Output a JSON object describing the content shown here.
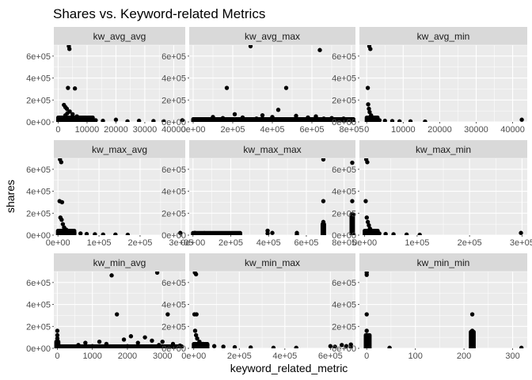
{
  "chart_data": {
    "type": "scatter",
    "title": "Shares vs. Keyword-related Metrics",
    "xlabel": "keyword_related_metric",
    "ylabel": "shares",
    "facet_layout": "3x3 grid, free x scales",
    "grid": true,
    "colors": {
      "panel_bg": "#ebebeb",
      "strip_bg": "#d9d9d9",
      "grid": "#ffffff",
      "point": "#000000",
      "text": "#4d4d4d",
      "strip_text": "#1a1a1a"
    },
    "y_ticks": [
      "0e+00",
      "2e+05",
      "4e+05",
      "6e+05"
    ],
    "y_tick_values": [
      0,
      200000,
      400000,
      600000
    ],
    "ylim": [
      0,
      700000
    ],
    "facets": [
      {
        "label": "kw_avg_avg",
        "xlim": [
          -1500,
          44000
        ],
        "x_ticks": [
          "0",
          "10000",
          "20000",
          "30000",
          "40000"
        ],
        "x_tick_values": [
          0,
          10000,
          20000,
          30000,
          40000
        ],
        "points": [
          [
            3700,
            690000
          ],
          [
            3900,
            665000
          ],
          [
            3400,
            310000
          ],
          [
            5800,
            305000
          ],
          [
            2000,
            155000
          ],
          [
            2500,
            135000
          ],
          [
            3000,
            120000
          ],
          [
            4000,
            95000
          ],
          [
            5000,
            70000
          ],
          [
            6500,
            50000
          ],
          [
            8000,
            35000
          ],
          [
            9500,
            20000
          ],
          [
            11000,
            25000
          ],
          [
            13000,
            15000
          ],
          [
            15500,
            10000
          ],
          [
            20000,
            20000
          ],
          [
            24000,
            5000
          ],
          [
            28000,
            10000
          ],
          [
            33000,
            8000
          ],
          [
            36500,
            5000
          ],
          [
            43000,
            15000
          ],
          [
            2500,
            60000
          ],
          [
            3200,
            80000
          ],
          [
            4500,
            40000
          ],
          [
            6000,
            30000
          ],
          [
            7500,
            15000
          ]
        ],
        "band": [
          [
            0,
            12000,
            0,
            40000
          ]
        ]
      },
      {
        "label": "kw_avg_max",
        "xlim": [
          -20000,
          820000
        ],
        "x_ticks": [
          "0e+00",
          "2e+05",
          "4e+05",
          "6e+05",
          "8e+05"
        ],
        "x_tick_values": [
          0,
          200000,
          400000,
          600000,
          800000
        ],
        "points": [
          [
            290000,
            690000
          ],
          [
            640000,
            655000
          ],
          [
            170000,
            310000
          ],
          [
            470000,
            310000
          ],
          [
            430000,
            110000
          ],
          [
            210000,
            70000
          ],
          [
            350000,
            60000
          ],
          [
            520000,
            55000
          ],
          [
            620000,
            50000
          ],
          [
            100000,
            45000
          ],
          [
            250000,
            40000
          ],
          [
            580000,
            40000
          ],
          [
            700000,
            35000
          ],
          [
            760000,
            30000
          ],
          [
            800000,
            25000
          ],
          [
            150000,
            35000
          ],
          [
            320000,
            30000
          ],
          [
            400000,
            45000
          ],
          [
            660000,
            30000
          ]
        ],
        "band": [
          [
            0,
            810000,
            0,
            25000
          ]
        ]
      },
      {
        "label": "kw_avg_min",
        "xlim": [
          -2000,
          44000
        ],
        "x_ticks": [
          "0",
          "10000",
          "20000",
          "30000",
          "40000"
        ],
        "x_tick_values": [
          0,
          10000,
          20000,
          30000,
          40000
        ],
        "points": [
          [
            700,
            690000
          ],
          [
            1000,
            665000
          ],
          [
            300,
            310000
          ],
          [
            400,
            160000
          ],
          [
            600,
            120000
          ],
          [
            800,
            90000
          ],
          [
            1200,
            60000
          ],
          [
            1600,
            40000
          ],
          [
            2500,
            25000
          ],
          [
            3500,
            15000
          ],
          [
            5000,
            10000
          ],
          [
            7000,
            8000
          ],
          [
            9000,
            5000
          ],
          [
            12000,
            5000
          ],
          [
            16000,
            3000
          ],
          [
            42500,
            20000
          ]
        ],
        "band": [
          [
            0,
            3000,
            0,
            40000
          ]
        ]
      },
      {
        "label": "kw_max_avg",
        "xlim": [
          -10000,
          310000
        ],
        "x_ticks": [
          "0e+00",
          "1e+05",
          "2e+05",
          "3e+05"
        ],
        "x_tick_values": [
          0,
          100000,
          200000,
          300000
        ],
        "points": [
          [
            5000,
            690000
          ],
          [
            8000,
            665000
          ],
          [
            4000,
            310000
          ],
          [
            10000,
            300000
          ],
          [
            6000,
            160000
          ],
          [
            9000,
            140000
          ],
          [
            12000,
            100000
          ],
          [
            15000,
            70000
          ],
          [
            20000,
            50000
          ],
          [
            25000,
            30000
          ],
          [
            30000,
            25000
          ],
          [
            40000,
            20000
          ],
          [
            55000,
            15000
          ],
          [
            70000,
            10000
          ],
          [
            90000,
            8000
          ],
          [
            110000,
            5000
          ],
          [
            140000,
            5000
          ],
          [
            170000,
            3000
          ],
          [
            298000,
            20000
          ]
        ],
        "band": [
          [
            0,
            40000,
            0,
            40000
          ]
        ]
      },
      {
        "label": "kw_max_max",
        "xlim": [
          -20000,
          860000
        ],
        "x_ticks": [
          "0e+00",
          "2e+05",
          "4e+05",
          "6e+05",
          "8e+05"
        ],
        "x_tick_values": [
          0,
          200000,
          400000,
          600000,
          800000
        ],
        "points": [
          [
            690000,
            690000
          ],
          [
            843000,
            660000
          ],
          [
            690000,
            310000
          ],
          [
            843000,
            310000
          ],
          [
            690000,
            120000
          ],
          [
            690000,
            80000
          ],
          [
            690000,
            50000
          ],
          [
            843000,
            180000
          ],
          [
            843000,
            150000
          ],
          [
            843000,
            120000
          ],
          [
            843000,
            90000
          ],
          [
            843000,
            60000
          ],
          [
            395000,
            40000
          ],
          [
            395000,
            15000
          ],
          [
            420000,
            20000
          ],
          [
            550000,
            20000
          ],
          [
            550000,
            5000
          ],
          [
            10000,
            20000
          ],
          [
            30000,
            15000
          ],
          [
            60000,
            18000
          ],
          [
            100000,
            10000
          ],
          [
            150000,
            12000
          ],
          [
            180000,
            8000
          ],
          [
            210000,
            15000
          ],
          [
            240000,
            5000
          ]
        ],
        "band": [
          [
            0,
            250000,
            0,
            20000
          ],
          [
            686000,
            694000,
            0,
            100000
          ],
          [
            839000,
            847000,
            0,
            190000
          ]
        ]
      },
      {
        "label": "kw_max_min",
        "xlim": [
          -10000,
          310000
        ],
        "x_ticks": [
          "0e+00",
          "1e+05",
          "2e+05",
          "3e+05"
        ],
        "x_tick_values": [
          0,
          100000,
          200000,
          300000
        ],
        "points": [
          [
            3000,
            690000
          ],
          [
            5000,
            665000
          ],
          [
            2000,
            310000
          ],
          [
            4000,
            160000
          ],
          [
            6000,
            120000
          ],
          [
            8000,
            90000
          ],
          [
            10000,
            60000
          ],
          [
            14000,
            40000
          ],
          [
            20000,
            25000
          ],
          [
            28000,
            15000
          ],
          [
            40000,
            10000
          ],
          [
            55000,
            8000
          ],
          [
            80000,
            5000
          ],
          [
            105000,
            3000
          ],
          [
            298000,
            20000
          ]
        ],
        "band": [
          [
            0,
            25000,
            0,
            40000
          ]
        ]
      },
      {
        "label": "kw_min_avg",
        "xlim": [
          -100,
          3650
        ],
        "x_ticks": [
          "0",
          "1000",
          "2000",
          "3000"
        ],
        "x_tick_values": [
          0,
          1000,
          2000,
          3000
        ],
        "points": [
          [
            0,
            160000
          ],
          [
            0,
            120000
          ],
          [
            0,
            90000
          ],
          [
            0,
            60000
          ],
          [
            1550,
            665000
          ],
          [
            2850,
            690000
          ],
          [
            1700,
            310000
          ],
          [
            3150,
            310000
          ],
          [
            2100,
            110000
          ],
          [
            2500,
            100000
          ],
          [
            1900,
            80000
          ],
          [
            2700,
            70000
          ],
          [
            1200,
            60000
          ],
          [
            3000,
            60000
          ],
          [
            800,
            50000
          ],
          [
            2300,
            50000
          ],
          [
            1400,
            40000
          ],
          [
            3300,
            40000
          ],
          [
            600,
            30000
          ],
          [
            2900,
            30000
          ],
          [
            3500,
            25000
          ],
          [
            1000,
            20000
          ],
          [
            2000,
            20000
          ],
          [
            500,
            15000
          ]
        ],
        "band": [
          [
            0,
            3550,
            0,
            18000
          ],
          [
            -30,
            30,
            0,
            60000
          ]
        ]
      },
      {
        "label": "kw_min_max",
        "xlim": [
          -20000,
          710000
        ],
        "x_ticks": [
          "0e+00",
          "2e+05",
          "4e+05",
          "6e+05"
        ],
        "x_tick_values": [
          0,
          200000,
          400000,
          600000
        ],
        "points": [
          [
            5000,
            690000
          ],
          [
            10000,
            675000
          ],
          [
            3000,
            310000
          ],
          [
            12000,
            310000
          ],
          [
            6000,
            160000
          ],
          [
            10000,
            120000
          ],
          [
            15000,
            90000
          ],
          [
            25000,
            60000
          ],
          [
            40000,
            40000
          ],
          [
            60000,
            30000
          ],
          [
            90000,
            20000
          ],
          [
            130000,
            15000
          ],
          [
            180000,
            10000
          ],
          [
            250000,
            8000
          ],
          [
            350000,
            5000
          ],
          [
            450000,
            5000
          ],
          [
            600000,
            20000
          ],
          [
            620000,
            15000
          ],
          [
            650000,
            30000
          ],
          [
            690000,
            35000
          ],
          [
            690000,
            10000
          ],
          [
            670000,
            20000
          ]
        ],
        "band": [
          [
            0,
            60000,
            0,
            40000
          ]
        ]
      },
      {
        "label": "kw_min_min",
        "xlim": [
          -15,
          330
        ],
        "x_ticks": [
          "0",
          "100",
          "200",
          "300"
        ],
        "x_tick_values": [
          0,
          100,
          200,
          300
        ],
        "points": [
          [
            0,
            690000
          ],
          [
            0,
            670000
          ],
          [
            0,
            310000
          ],
          [
            0,
            160000
          ],
          [
            0,
            120000
          ],
          [
            4,
            90000
          ],
          [
            4,
            60000
          ],
          [
            0,
            40000
          ],
          [
            4,
            20000
          ],
          [
            47,
            5000
          ],
          [
            217,
            310000
          ],
          [
            217,
            160000
          ],
          [
            217,
            130000
          ],
          [
            217,
            90000
          ],
          [
            217,
            60000
          ],
          [
            217,
            30000
          ],
          [
            217,
            10000
          ],
          [
            318,
            5000
          ]
        ],
        "band": [
          [
            -2,
            6,
            0,
            120000
          ],
          [
            214,
            220,
            0,
            150000
          ]
        ]
      }
    ]
  }
}
